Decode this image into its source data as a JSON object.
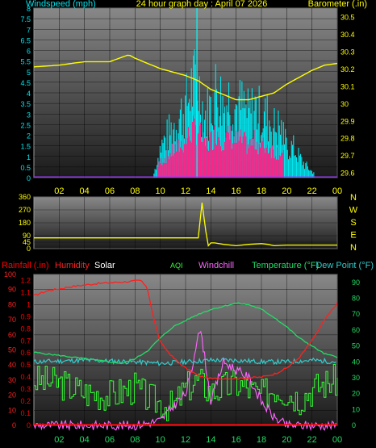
{
  "header": {
    "wind_label": "Windspeed (mph)",
    "title": "24 hour graph day : April 07 2026",
    "baro_label": "Barometer (.in)"
  },
  "legend2": {
    "rain": "Rainfall (.in)",
    "humidity": "Humidity",
    "solar": "Solar",
    "aqi": "AQI",
    "windchill": "Windchill",
    "temp": "Temperature (°F)",
    "dew": "Dew Point (°F)"
  },
  "colors": {
    "wind": "#00e5ee",
    "gust": "#00ffff",
    "baro": "#ffff00",
    "direction": "#ffff00",
    "rain": "#ff0000",
    "humidity": "#ff2020",
    "temp": "#22dd66",
    "dew": "#33cccc",
    "aqi": "#33ff33",
    "windchill": "#ff66ff",
    "rain_bars": "#ff2288",
    "solar": "#ffffff",
    "panel_top": "#888888",
    "panel_bottom": "#1a1a1a"
  },
  "chart_data": [
    {
      "type": "bar",
      "title": "24 hour graph day : April 07 2026",
      "series": [
        {
          "name": "Windspeed",
          "x": [
            9.5,
            10,
            10.5,
            11,
            11.5,
            12,
            12.5,
            13,
            13.5,
            14,
            14.5,
            15,
            15.5,
            16,
            16.5,
            17,
            17.5,
            18,
            18.5,
            19,
            19.5,
            20,
            20.5,
            21,
            21.5,
            22
          ],
          "values": [
            0.2,
            1.5,
            2,
            2.5,
            3,
            3.5,
            4.5,
            4.6,
            3,
            3.5,
            4.5,
            3.5,
            4,
            3.5,
            3.5,
            3,
            3.5,
            3,
            3,
            2.5,
            2.5,
            1.5,
            1.5,
            1,
            0.6,
            0.3
          ]
        },
        {
          "name": "Barometer",
          "x": [
            0,
            2,
            4,
            6,
            7.5,
            8,
            10,
            12,
            13,
            14,
            15,
            16,
            17,
            18,
            19,
            20,
            21,
            22,
            23,
            24
          ],
          "values": [
            30.21,
            30.22,
            30.24,
            30.24,
            30.28,
            30.26,
            30.2,
            30.16,
            30.13,
            30.08,
            30.05,
            30.02,
            30.02,
            30.04,
            30.06,
            30.11,
            30.15,
            30.19,
            30.22,
            30.23
          ]
        }
      ],
      "xlabel": "",
      "ylabel": "Windspeed (mph)",
      "xticks": [
        "02",
        "04",
        "06",
        "08",
        "10",
        "12",
        "14",
        "16",
        "18",
        "20",
        "22",
        "00"
      ],
      "yticks_left": [
        "0",
        "0.5",
        "1",
        "1.5",
        "2",
        "2.5",
        "3",
        "3.5",
        "4",
        "4.5",
        "5",
        "5.5",
        "6",
        "6.5",
        "7",
        "7.5",
        "8"
      ],
      "yticks_right": [
        "29.6",
        "29.7",
        "29.8",
        "29.9",
        "30",
        "30.1",
        "30.2",
        "30.3",
        "30.4",
        "30.5"
      ],
      "ylim": [
        0,
        8
      ],
      "ylim_right": [
        29.57,
        30.55
      ],
      "xlim": [
        0,
        24
      ],
      "grid": true
    },
    {
      "type": "line",
      "series": [
        {
          "name": "Wind Direction",
          "x": [
            0,
            13,
            13.3,
            13.6,
            13.8,
            14,
            14.3,
            15,
            16,
            17,
            18,
            18.5,
            19,
            20,
            22,
            24
          ],
          "values": [
            75,
            75,
            320,
            120,
            20,
            40,
            40,
            30,
            20,
            30,
            35,
            30,
            20,
            25,
            25,
            25
          ]
        }
      ],
      "yticks_left": [
        "0",
        "45",
        "90",
        "180",
        "270",
        "360"
      ],
      "direction_labels": [
        "N",
        "W",
        "S",
        "E",
        "N"
      ],
      "ylim": [
        0,
        360
      ],
      "xlim": [
        0,
        24
      ],
      "grid": true
    },
    {
      "type": "line",
      "series": [
        {
          "name": "Humidity",
          "x": [
            0,
            1,
            3,
            5,
            7,
            8.5,
            9,
            9.5,
            10,
            11,
            12,
            13,
            14,
            16,
            18,
            19,
            20,
            21,
            22,
            23,
            24
          ],
          "values": [
            86,
            89,
            92,
            94,
            95,
            96,
            90,
            70,
            55,
            45,
            38,
            33,
            31,
            31,
            32,
            34,
            38,
            45,
            56,
            70,
            81
          ]
        },
        {
          "name": "Temperature (°F)",
          "x": [
            0,
            2,
            4,
            6,
            7,
            8,
            9,
            10,
            11,
            12,
            13,
            14,
            15,
            16,
            17,
            18,
            19,
            20,
            21,
            22,
            23,
            24
          ],
          "values": [
            46,
            44,
            42,
            40,
            39,
            42,
            47,
            55,
            62,
            66,
            70,
            73,
            75,
            77,
            76,
            73,
            68,
            62,
            55,
            50,
            45,
            43
          ]
        },
        {
          "name": "Dew Point (°F)",
          "x": [
            0,
            4,
            8,
            10,
            12,
            14,
            16,
            18,
            20,
            22,
            24
          ],
          "values": [
            40,
            41,
            40,
            39,
            40,
            41,
            41,
            40,
            40,
            41,
            40
          ]
        },
        {
          "name": "Windchill",
          "x": [
            0,
            8,
            10,
            11,
            12,
            12.5,
            13,
            13.3,
            14,
            15,
            16,
            17,
            18,
            19,
            20,
            21,
            24
          ],
          "values": [
            0,
            0,
            3,
            12,
            20,
            35,
            60,
            55,
            15,
            40,
            35,
            30,
            15,
            5,
            0,
            0,
            0
          ]
        },
        {
          "name": "AQI",
          "x": [
            0,
            2,
            4,
            6,
            8,
            9,
            10,
            11,
            12,
            13,
            14,
            15,
            16,
            17,
            18,
            19,
            20,
            21,
            22,
            23,
            24
          ],
          "values": [
            30,
            28,
            22,
            20,
            25,
            18,
            15,
            12,
            25,
            30,
            22,
            25,
            28,
            24,
            20,
            25,
            22,
            18,
            24,
            28,
            30
          ]
        },
        {
          "name": "Rainfall (.in)",
          "x": [
            0,
            24
          ],
          "values": [
            0,
            0
          ]
        }
      ],
      "xticks": [
        "02",
        "04",
        "06",
        "08",
        "10",
        "12",
        "14",
        "16",
        "18",
        "20",
        "22",
        "00"
      ],
      "yticks_left": [
        "0",
        "10",
        "20",
        "30",
        "40",
        "50",
        "60",
        "70",
        "80",
        "90",
        "100"
      ],
      "yticks_rain": [
        "0",
        "0.1",
        "0.2",
        "0.3",
        "0.4",
        "0.5",
        "0.6",
        "0.7",
        "0.8",
        "0.9",
        "1",
        "1.1",
        "1.2"
      ],
      "yticks_right": [
        "0",
        "10",
        "20",
        "30",
        "40",
        "50",
        "60",
        "70",
        "80",
        "90"
      ],
      "ylim": [
        0,
        100
      ],
      "ylim_right": [
        0,
        95
      ],
      "xlim": [
        0,
        24
      ],
      "grid": true
    }
  ]
}
